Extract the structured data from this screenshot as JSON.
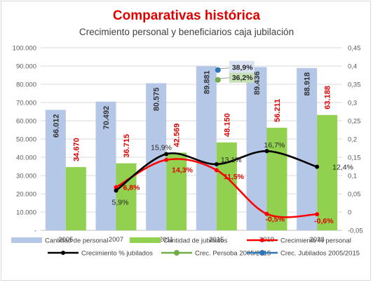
{
  "chart_data": {
    "type": "bar",
    "title": "Comparativas histórica",
    "subtitle": "Crecimiento personal y beneficiarios caja jubilación",
    "categories": [
      "2005",
      "2007",
      "2011",
      "2015",
      "2019",
      "2023"
    ],
    "ylim": [
      0,
      100000
    ],
    "y2lim": [
      -0.05,
      0.45
    ],
    "y_ticks": [
      "-",
      "10.000",
      "20.000",
      "30.000",
      "40.000",
      "50.000",
      "60.000",
      "70.000",
      "80.000",
      "90.000",
      "100.000"
    ],
    "y2_ticks": [
      "-0,05",
      "0",
      "0,05",
      "0,1",
      "0,15",
      "0,2",
      "0,25",
      "0,3",
      "0,35",
      "0,4",
      "0,45"
    ],
    "grid": true,
    "legend_position": "bottom",
    "series": [
      {
        "name": "Cantidad de personal",
        "kind": "bar",
        "axis": "left",
        "color": "#b4c7e7",
        "values": [
          66012,
          70492,
          80575,
          89881,
          89436,
          88918
        ],
        "labels": [
          "66.012",
          "70.492",
          "80.575",
          "89.881",
          "89.436",
          "88.918"
        ]
      },
      {
        "name": "Cantidad de jubilados",
        "kind": "bar",
        "axis": "left",
        "color": "#92d050",
        "values": [
          34670,
          36715,
          42569,
          48150,
          56211,
          63188
        ],
        "labels": [
          "34.670",
          "36.715",
          "42.569",
          "48.150",
          "56.211",
          "63.188"
        ]
      },
      {
        "name": "Crecimiento % personal",
        "kind": "line",
        "axis": "right",
        "color": "#ff0000",
        "values": [
          null,
          0.068,
          0.143,
          0.115,
          -0.005,
          -0.006
        ],
        "labels": [
          null,
          "6,8%",
          "14,3%",
          "11,5%",
          "-0,5%",
          "-0,6%"
        ]
      },
      {
        "name": "Crecimiento % jubilados",
        "kind": "line",
        "axis": "right",
        "color": "#000000",
        "values": [
          null,
          0.059,
          0.159,
          0.131,
          0.167,
          0.124
        ],
        "labels": [
          null,
          "5,9%",
          "15,9%",
          "13,1%",
          "16,7%",
          "12,4%"
        ]
      },
      {
        "name": "Crec. Persoba 2005/2015",
        "kind": "point",
        "axis": "right",
        "color": "#70ad47",
        "x_index": 3,
        "value": 0.362,
        "label": "36,2%"
      },
      {
        "name": "Crec. Jubilados 2005/2015",
        "kind": "point",
        "axis": "right",
        "color": "#2e75b6",
        "x_index": 3,
        "value": 0.389,
        "label": "38,9%"
      }
    ]
  }
}
